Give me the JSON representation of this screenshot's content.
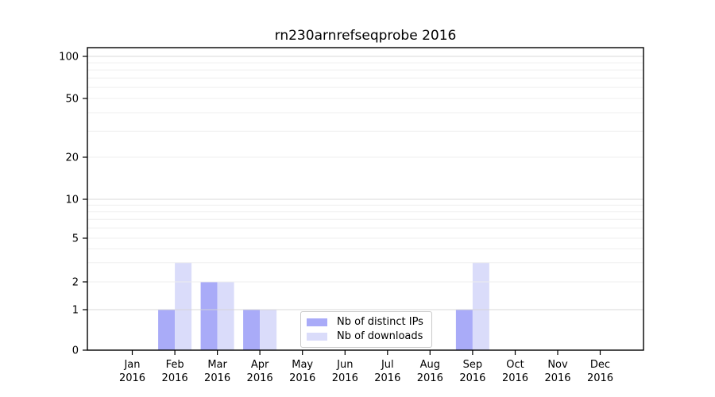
{
  "chart_data": {
    "type": "bar",
    "title": "rn230arnrefseqprobe 2016",
    "categories": [
      "Jan 2016",
      "Feb 2016",
      "Mar 2016",
      "Apr 2016",
      "May 2016",
      "Jun 2016",
      "Jul 2016",
      "Aug 2016",
      "Sep 2016",
      "Oct 2016",
      "Nov 2016",
      "Dec 2016"
    ],
    "series": [
      {
        "name": "Nb of distinct IPs",
        "color": "#a9abf8",
        "values": [
          0,
          1,
          2,
          1,
          0,
          0,
          0,
          0,
          1,
          0,
          0,
          0
        ]
      },
      {
        "name": "Nb of downloads",
        "color": "#dadcfa",
        "values": [
          0,
          3,
          2,
          1,
          0,
          0,
          0,
          0,
          3,
          0,
          0,
          0
        ]
      }
    ],
    "xlabel": "",
    "ylabel": "",
    "ylim": [
      0,
      100
    ],
    "yscale": "symlog",
    "yticks": [
      0,
      1,
      2,
      5,
      10,
      20,
      50,
      100
    ],
    "major_gridlines": [
      1,
      10,
      100
    ],
    "minor_gridlines": [
      2,
      3,
      4,
      5,
      6,
      7,
      8,
      9,
      20,
      30,
      40,
      50,
      60,
      70,
      80,
      90
    ],
    "grid": "horizontal",
    "legend_position": "lower-center-inside",
    "colors": {
      "major_grid": "#d4d4d4",
      "minor_grid": "#ededed",
      "spine": "#000000",
      "tick_label": "#000000"
    }
  }
}
